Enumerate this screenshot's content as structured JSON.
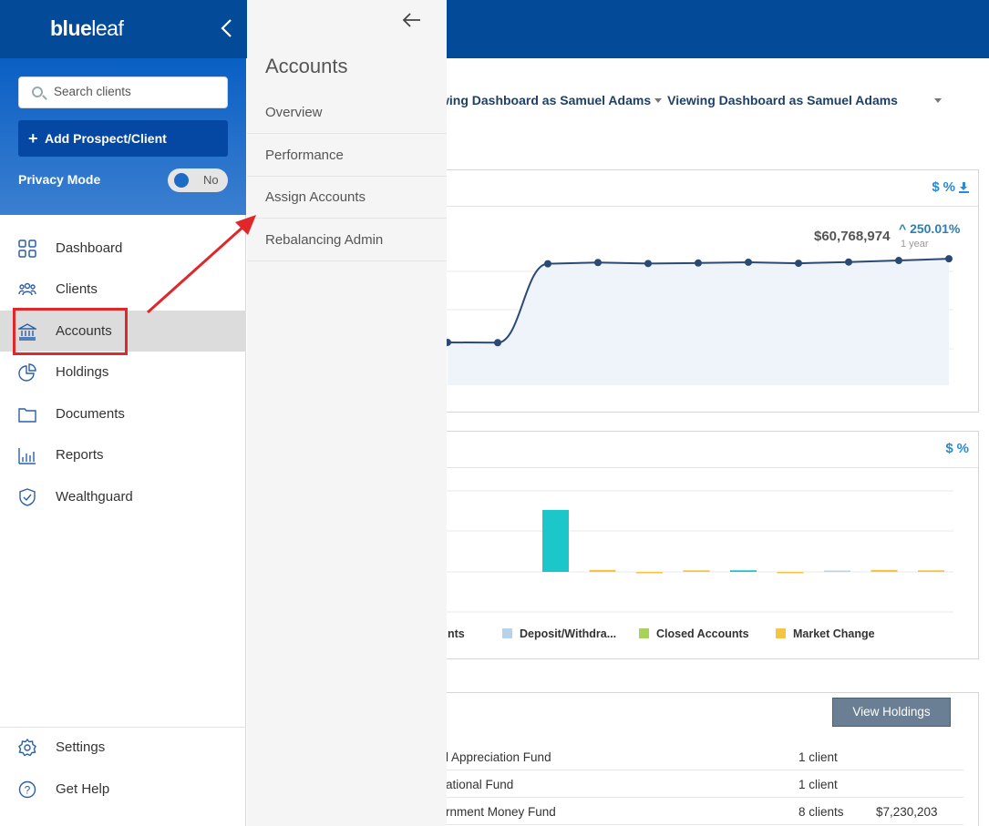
{
  "brand": {
    "logo_bold": "blue",
    "logo_light": "leaf"
  },
  "search": {
    "placeholder": "Search clients"
  },
  "add_button": {
    "label": "Add Prospect/Client"
  },
  "privacy": {
    "label": "Privacy Mode",
    "toggle_value": "No"
  },
  "nav": {
    "items": [
      {
        "label": "Dashboard",
        "icon": "grid-icon"
      },
      {
        "label": "Clients",
        "icon": "users-icon"
      },
      {
        "label": "Accounts",
        "icon": "bank-icon"
      },
      {
        "label": "Holdings",
        "icon": "pie-icon"
      },
      {
        "label": "Documents",
        "icon": "folder-icon"
      },
      {
        "label": "Reports",
        "icon": "bar-chart-icon"
      },
      {
        "label": "Wealthguard",
        "icon": "shield-icon"
      }
    ],
    "bottom": [
      {
        "label": "Settings",
        "icon": "gear-icon"
      },
      {
        "label": "Get Help",
        "icon": "help-icon"
      }
    ]
  },
  "flyout": {
    "title": "Accounts",
    "items": [
      {
        "label": "Overview"
      },
      {
        "label": "Performance"
      },
      {
        "label": "Assign Accounts"
      },
      {
        "label": "Rebalancing Admin"
      }
    ]
  },
  "main": {
    "viewing_1": "wing Dashboard as Samuel Adams",
    "viewing_2": "Viewing Dashboard as Samuel Adams",
    "card1": {
      "dollar": "$",
      "percent": "%",
      "value": "$60,768,974",
      "change": "250.01%",
      "period": "1 year"
    },
    "card2": {
      "dollar": "$",
      "percent": "%",
      "legend": [
        {
          "label": "nts",
          "color": ""
        },
        {
          "label": "Deposit/Withdra...",
          "color": "#b7d3ea"
        },
        {
          "label": "Closed Accounts",
          "color": "#a8d35a"
        },
        {
          "label": "Market Change",
          "color": "#f4c542"
        }
      ]
    },
    "card3": {
      "button": "View Holdings",
      "rows": [
        {
          "name": "l Appreciation Fund",
          "clients": "1 client",
          "value": ""
        },
        {
          "name": "ational Fund",
          "clients": "1 client",
          "value": ""
        },
        {
          "name": "rnment Money Fund",
          "clients": "8 clients",
          "value": "$7,230,203"
        }
      ]
    }
  },
  "chart_data": [
    {
      "type": "line",
      "title": "",
      "x": [
        0,
        1,
        2,
        3,
        4,
        5,
        6,
        7,
        8,
        9,
        10
      ],
      "series": [
        {
          "values": [
            17.1,
            17.0,
            48.5,
            49.0,
            48.6,
            48.8,
            49.1,
            48.7,
            49.2,
            49.8,
            50.5
          ]
        }
      ],
      "color": "#2a4a73",
      "area_fill": "#eef4fa"
    },
    {
      "type": "bar",
      "title": "",
      "categories": [
        "1",
        "2",
        "3",
        "4",
        "5",
        "6",
        "7",
        "8",
        "9"
      ],
      "series": [
        {
          "values": [
            15.3,
            0.5,
            -0.3,
            0.4,
            0.4,
            -0.3,
            0.3,
            0.5,
            0.4
          ]
        }
      ],
      "bar_colors": [
        "#1cc7c9",
        "#f4c542",
        "#f4c542",
        "#f4c542",
        "#1cc7c9",
        "#f4c542",
        "#b7d3ea",
        "#f4c542",
        "#f4c542"
      ]
    }
  ],
  "colors": {
    "brand_blue": "#034a99",
    "accent_blue": "#2a8bd1",
    "highlight_red": "#e0282a"
  }
}
